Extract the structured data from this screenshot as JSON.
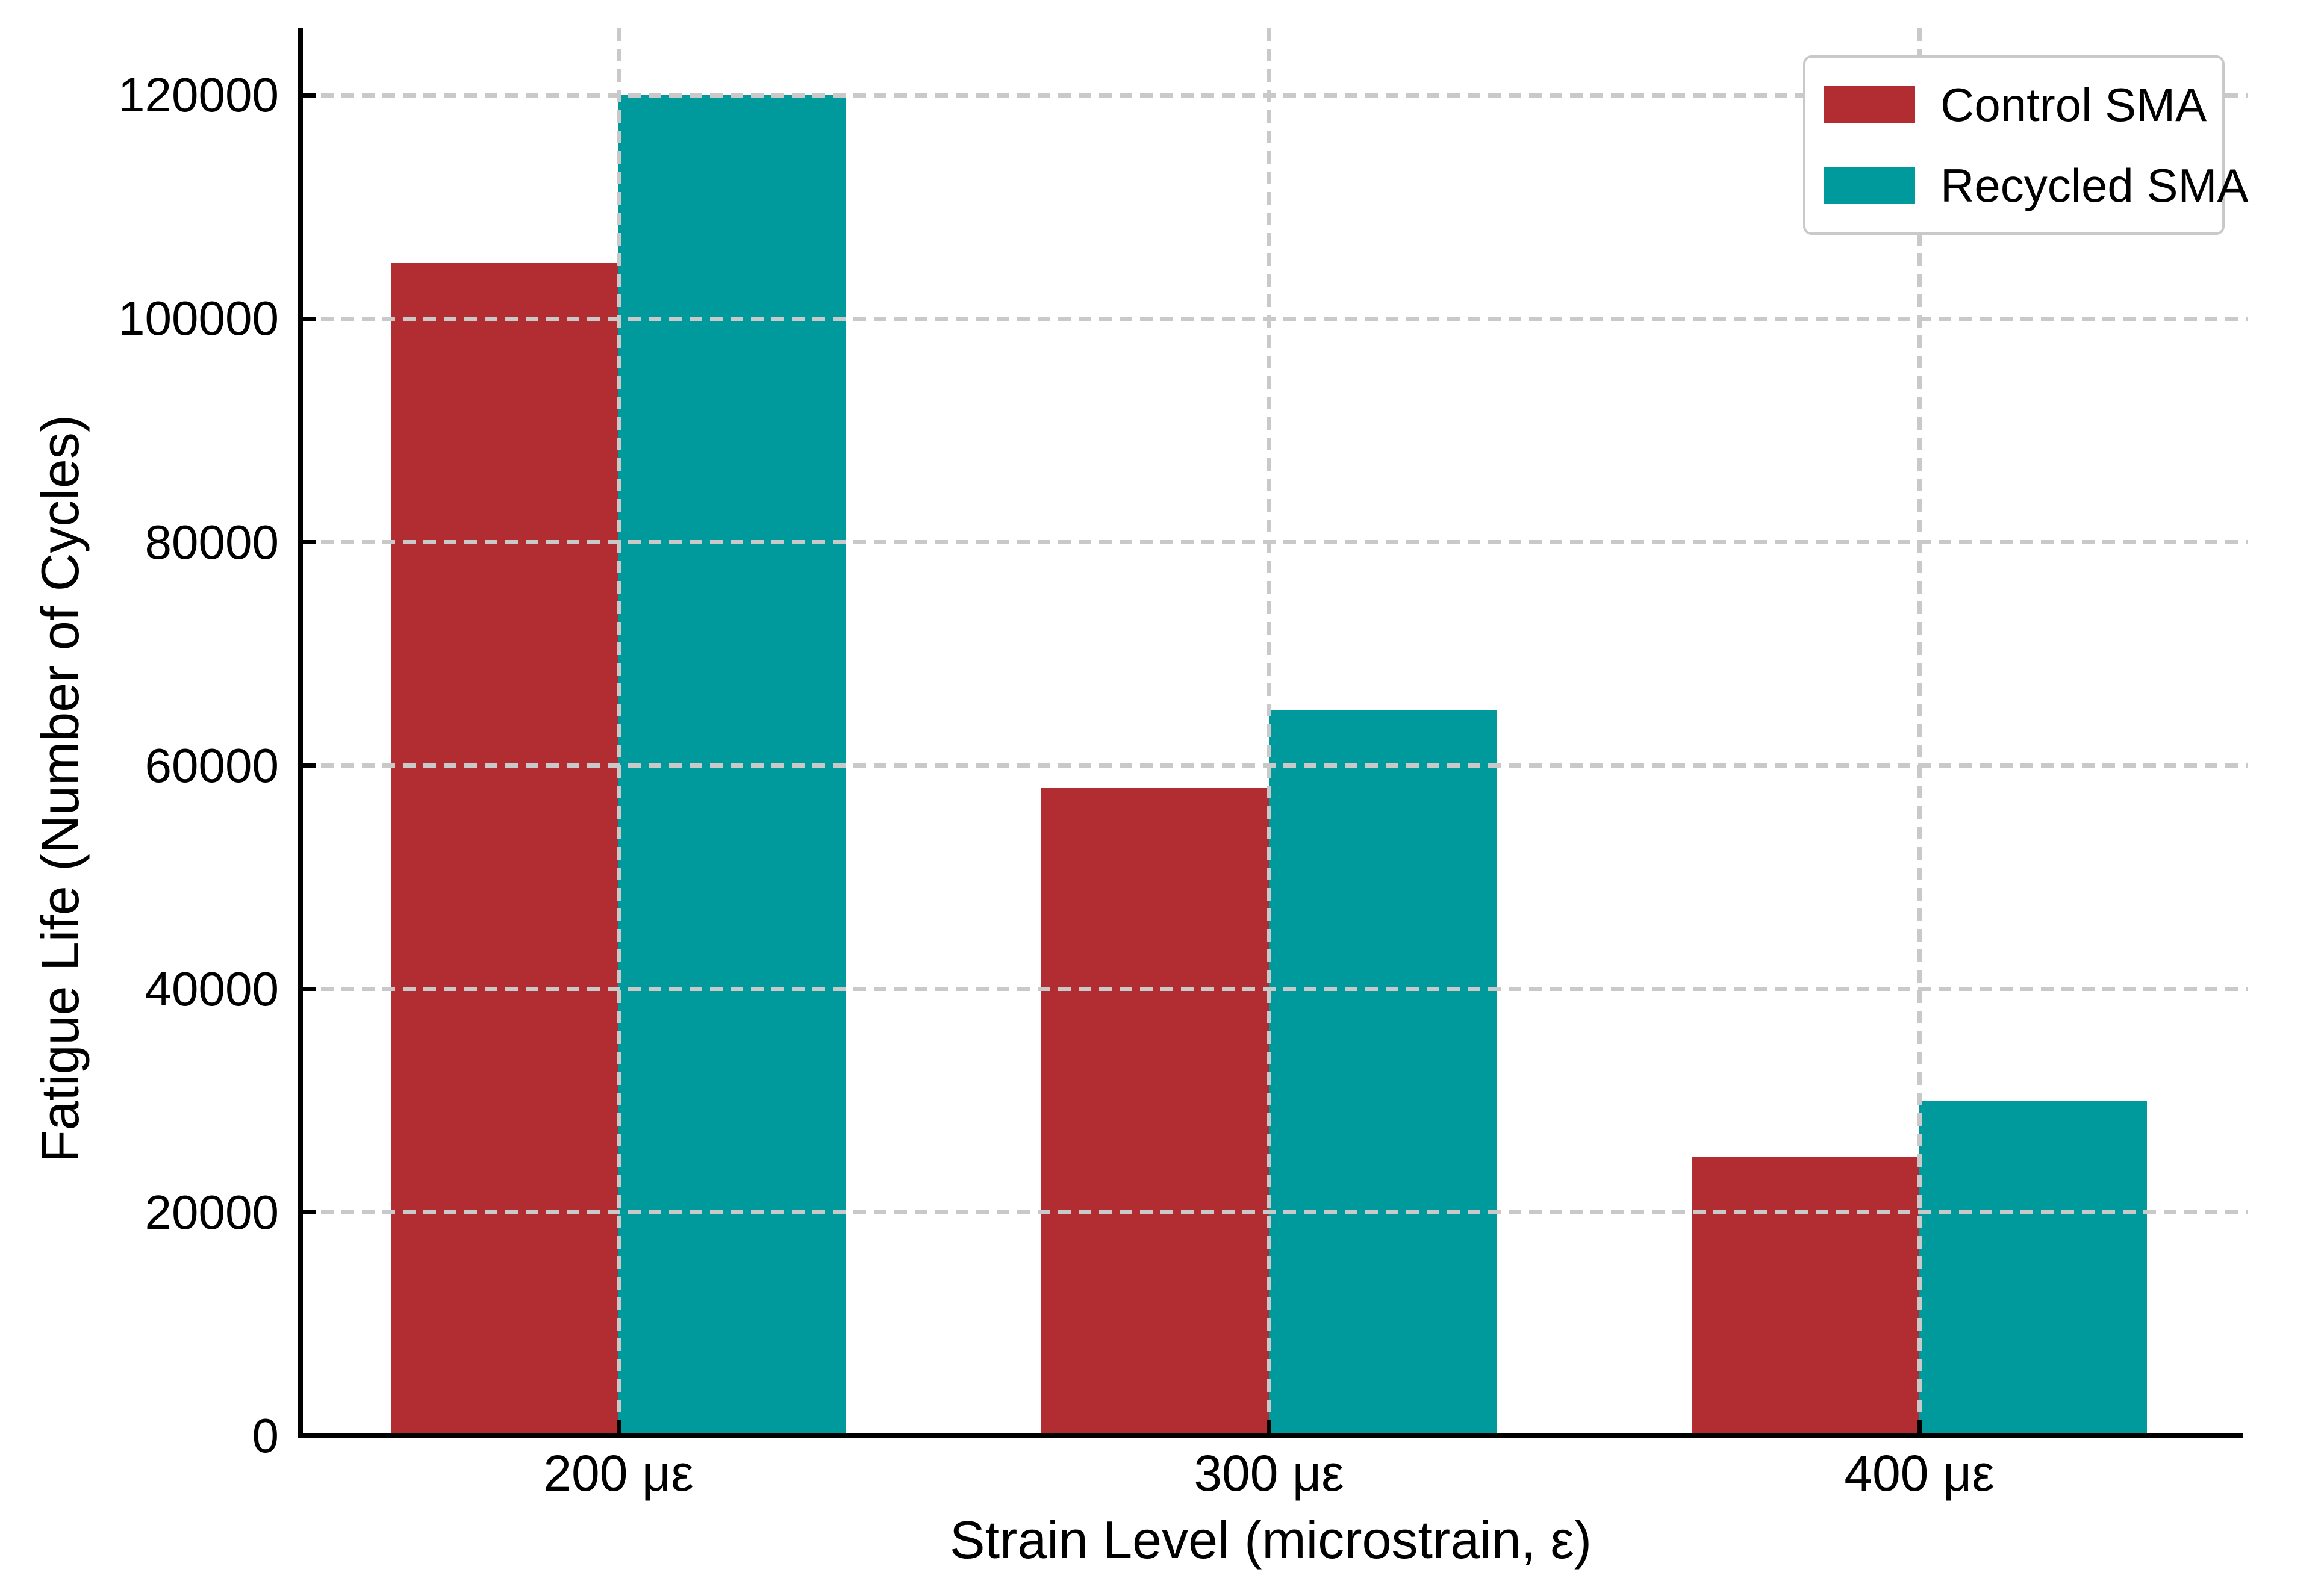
{
  "chart_data": {
    "type": "bar",
    "title": "",
    "xlabel": "Strain Level (microstrain, ε)",
    "ylabel": "Fatigue Life (Number of Cycles)",
    "categories": [
      "200 με",
      "300 με",
      "400 με"
    ],
    "series": [
      {
        "name": "Control SMA",
        "color": "#b22d32",
        "values": [
          105000,
          58000,
          25000
        ]
      },
      {
        "name": "Recycled SMA",
        "color": "#009a9c",
        "values": [
          120000,
          65000,
          30000
        ]
      }
    ],
    "ylim": [
      0,
      126000
    ],
    "yticks": [
      0,
      20000,
      40000,
      60000,
      80000,
      100000,
      120000
    ],
    "grid": "dashed gray, horizontal and vertical at category centers, drawn above bars",
    "legend_position": "upper right",
    "bar_width_fraction": 0.35
  },
  "colors": {
    "background": "#ffffff",
    "axis": "#000000",
    "grid": "#c9c9c9",
    "control_sma": "#b22d32",
    "recycled_sma": "#009a9c"
  }
}
